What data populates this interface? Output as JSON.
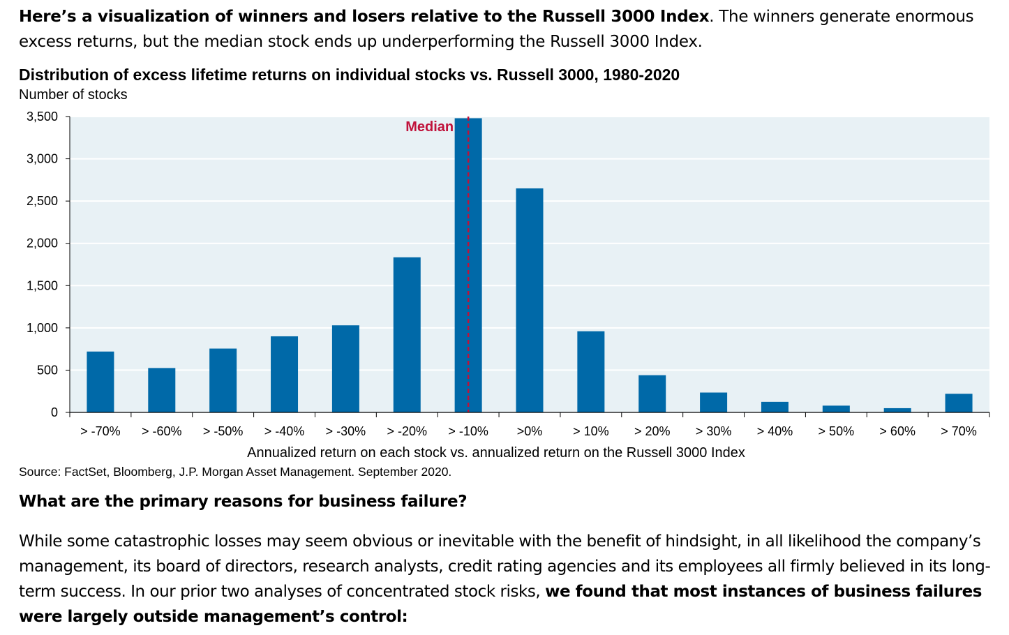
{
  "intro": {
    "bold": "Here’s a visualization of winners and losers relative to the Russell 3000 Index",
    "rest": ".  The winners generate enormous excess returns, but the median stock ends up underperforming the Russell 3000 Index."
  },
  "chart_data": {
    "type": "bar",
    "title": "Distribution of excess lifetime returns on individual stocks vs. Russell 3000, 1980-2020",
    "ylabel": "Number of stocks",
    "xlabel": "Annualized return on each stock vs. annualized return on the Russell 3000 Index",
    "categories": [
      "> -70%",
      "> -60%",
      "> -50%",
      "> -40%",
      "> -30%",
      "> -20%",
      "> -10%",
      ">0%",
      "> 10%",
      "> 20%",
      "> 30%",
      "> 40%",
      "> 50%",
      "> 60%",
      "> 70%"
    ],
    "values": [
      720,
      525,
      755,
      900,
      1030,
      1835,
      3480,
      2650,
      960,
      440,
      235,
      125,
      80,
      50,
      220
    ],
    "ylim": [
      0,
      3500
    ],
    "yticks": [
      0,
      500,
      1000,
      1500,
      2000,
      2500,
      3000,
      3500
    ],
    "ytick_labels": [
      "0",
      "500",
      "1,000",
      "1,500",
      "2,000",
      "2,500",
      "3,000",
      "3,500"
    ],
    "grid": true,
    "bar_color": "#0069a8",
    "plot_background": "#e8f1f5",
    "median": {
      "label": "Median",
      "category_index": 6,
      "color": "#c0113a"
    }
  },
  "source": "Source: FactSet, Bloomberg, J.P. Morgan Asset Management. September 2020.",
  "section": {
    "heading": "What are the primary reasons for business failure?",
    "body_plain": "While some catastrophic losses may seem obvious or inevitable with the benefit of hindsight, in all likelihood the company’s management, its board of directors, research analysts, credit rating agencies and its employees all firmly believed in its long-term success.  In our prior two analyses of concentrated stock risks, ",
    "body_bold": "we found that most instances of business failures were largely outside management’s control:"
  }
}
